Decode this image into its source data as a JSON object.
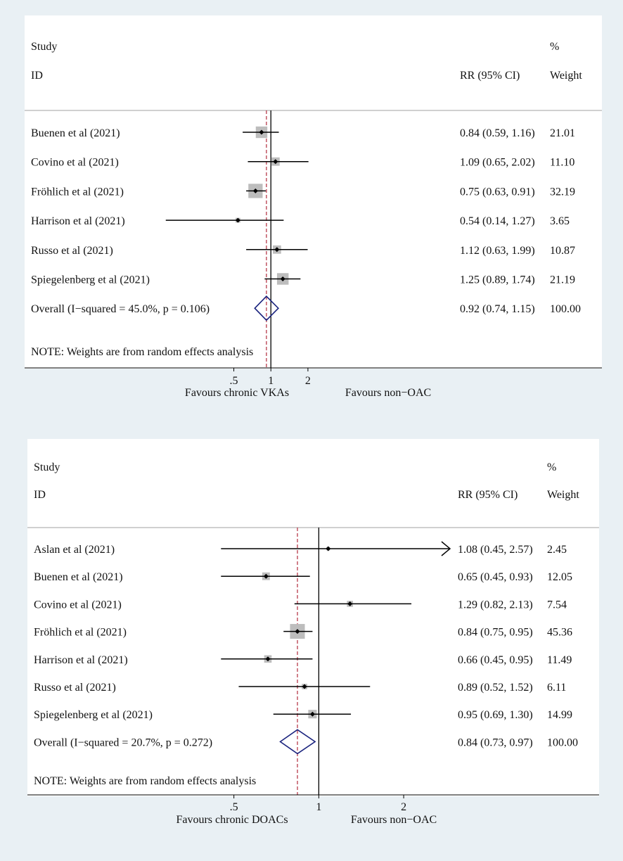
{
  "colors": {
    "background": "#e9f0f4",
    "panel": "#ffffff",
    "divider": "#b3b3b3",
    "ci_line": "#000000",
    "weight_box": "#bdbdbd",
    "diamond": "#1a237e",
    "overall_line": "#b83a4b"
  },
  "chart_data": [
    {
      "type": "forest",
      "header": {
        "study": "Study",
        "id": "ID",
        "pct": "%",
        "rr": "RR (95% CI)",
        "weight": "Weight"
      },
      "xaxis": {
        "scale": "log",
        "ticks": [
          ".5",
          "1",
          "2"
        ],
        "tick_values": [
          0.5,
          1,
          2
        ],
        "range": [
          0.135,
          5.3
        ]
      },
      "left_label": "Favours chronic VKAs",
      "right_label": "Favours non−OAC",
      "note": "NOTE: Weights are from random effects analysis",
      "studies": [
        {
          "name": "Buenen et al  (2021)",
          "rr": 0.84,
          "lo": 0.59,
          "hi": 1.16,
          "ci_text": "0.84 (0.59, 1.16)",
          "weight": 21.01,
          "weight_text": "21.01"
        },
        {
          "name": "Covino et al  (2021)",
          "rr": 1.09,
          "lo": 0.65,
          "hi": 2.02,
          "ci_text": "1.09 (0.65, 2.02)",
          "weight": 11.1,
          "weight_text": "11.10"
        },
        {
          "name": "Fröhlich et al (2021)",
          "rr": 0.75,
          "lo": 0.63,
          "hi": 0.91,
          "ci_text": "0.75 (0.63, 0.91)",
          "weight": 32.19,
          "weight_text": "32.19"
        },
        {
          "name": "Harrison et al (2021)",
          "rr": 0.54,
          "lo": 0.14,
          "hi": 1.27,
          "ci_text": "0.54 (0.14, 1.27)",
          "weight": 3.65,
          "weight_text": "3.65"
        },
        {
          "name": "Russo  et al (2021)",
          "rr": 1.12,
          "lo": 0.63,
          "hi": 1.99,
          "ci_text": "1.12 (0.63, 1.99)",
          "weight": 10.87,
          "weight_text": "10.87"
        },
        {
          "name": "Spiegelenberg et al (2021)",
          "rr": 1.25,
          "lo": 0.89,
          "hi": 1.74,
          "ci_text": "1.25 (0.89, 1.74)",
          "weight": 21.19,
          "weight_text": "21.19"
        }
      ],
      "overall": {
        "name": "Overall  (I−squared = 45.0%, p = 0.106)",
        "rr": 0.92,
        "lo": 0.74,
        "hi": 1.15,
        "ci_text": "0.92 (0.74, 1.15)",
        "weight_text": "100.00"
      }
    },
    {
      "type": "forest",
      "header": {
        "study": "Study",
        "id": "ID",
        "pct": "%",
        "rr": "RR (95% CI)",
        "weight": "Weight"
      },
      "xaxis": {
        "scale": "log",
        "ticks": [
          ".5",
          "1",
          "2"
        ],
        "tick_values": [
          0.5,
          1,
          2
        ],
        "range": [
          0.343,
          2.92
        ]
      },
      "left_label": "Favours chronic DOACs",
      "right_label": "Favours non−OAC",
      "note": "NOTE: Weights are from random effects analysis",
      "studies": [
        {
          "name": "Aslan et al (2021)",
          "rr": 1.08,
          "lo": 0.45,
          "hi": 2.57,
          "ci_text": "1.08 (0.45, 2.57)",
          "weight": 2.45,
          "weight_text": "2.45",
          "truncated_right": true
        },
        {
          "name": "Buenen et al  (2021)",
          "rr": 0.65,
          "lo": 0.45,
          "hi": 0.93,
          "ci_text": "0.65 (0.45, 0.93)",
          "weight": 12.05,
          "weight_text": "12.05"
        },
        {
          "name": "Covino et al  (2021)",
          "rr": 1.29,
          "lo": 0.82,
          "hi": 2.13,
          "ci_text": "1.29 (0.82, 2.13)",
          "weight": 7.54,
          "weight_text": "7.54"
        },
        {
          "name": "Fröhlich et al (2021)",
          "rr": 0.84,
          "lo": 0.75,
          "hi": 0.95,
          "ci_text": "0.84 (0.75, 0.95)",
          "weight": 45.36,
          "weight_text": "45.36"
        },
        {
          "name": "Harrison et al (2021)",
          "rr": 0.66,
          "lo": 0.45,
          "hi": 0.95,
          "ci_text": "0.66 (0.45, 0.95)",
          "weight": 11.49,
          "weight_text": "11.49"
        },
        {
          "name": "Russo  et al (2021)",
          "rr": 0.89,
          "lo": 0.52,
          "hi": 1.52,
          "ci_text": "0.89 (0.52, 1.52)",
          "weight": 6.11,
          "weight_text": "6.11"
        },
        {
          "name": "Spiegelenberg et al (2021)",
          "rr": 0.95,
          "lo": 0.69,
          "hi": 1.3,
          "ci_text": "0.95 (0.69, 1.30)",
          "weight": 14.99,
          "weight_text": "14.99"
        }
      ],
      "overall": {
        "name": "Overall  (I−squared = 20.7%, p = 0.272)",
        "rr": 0.84,
        "lo": 0.73,
        "hi": 0.97,
        "ci_text": "0.84 (0.73, 0.97)",
        "weight_text": "100.00"
      }
    }
  ]
}
